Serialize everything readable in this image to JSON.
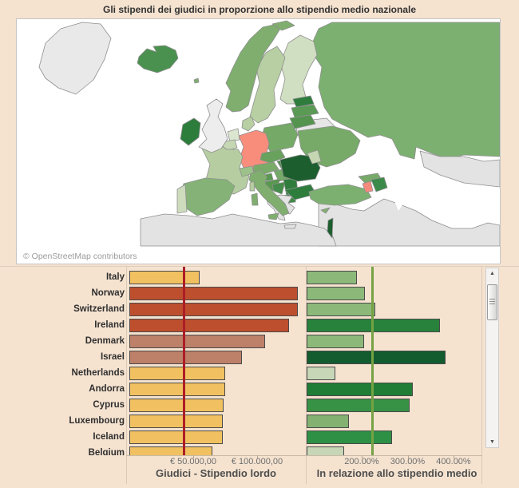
{
  "title": "Gli stipendi dei giudici in proporzione allo stipendio medio nazionale",
  "map": {
    "attribution": "© OpenStreetMap contributors",
    "country_colors": {
      "greenland": "#e9e9e9",
      "iceland": "#4a9150",
      "faroe": "#7fae6e",
      "norway": "#7fae6e",
      "sweden": "#b7cfa2",
      "finland": "#d0dfc1",
      "estonia": "#2e7d3d",
      "latvia": "#5a9a54",
      "lithuania": "#54944e",
      "belarus": "#e6e6e6",
      "russia": "#7cb070",
      "svalbard": "#7fae6e",
      "uk": "#ededed",
      "ireland": "#2c7c3b",
      "denmark": "#b7cfa2",
      "germany": "#f98d7c",
      "netherlands": "#dce5d0",
      "belgium": "#c6d7b4",
      "france": "#b6cda1",
      "switzerland": "#9cc289",
      "austria": "#79ab68",
      "czechia": "#68a25d",
      "poland": "#74a967",
      "slovakia": "#4c9350",
      "hungary": "#74a967",
      "slovenia": "#58984f",
      "croatia": "#58984f",
      "bosnia": "#438c49",
      "serbia": "#2e7d3d",
      "albania": "#3f8a46",
      "macedonia": "#3f8a46",
      "romania": "#1d5e2f",
      "moldova": "#c5d7b2",
      "bulgaria": "#2e7d3d",
      "greece": "#e3e3e3",
      "ukraine": "#77aa68",
      "spain": "#85b377",
      "portugal": "#cddcbd",
      "italy": "#7fae6e",
      "sicily": "#7fae6e",
      "sardinia": "#7fae6e",
      "corsica": "#b6cda1",
      "turkey": "#7cb070",
      "georgia": "#77aa68",
      "armenia": "#f58a7c",
      "azerbaijan": "#3b8a4a",
      "cyprus": "#7fae6e",
      "israel": "#1d5e2f",
      "north_africa": "#e3e3e3",
      "middle_east": "#e3e3e3",
      "kazakhstan": "#e3e3e3"
    }
  },
  "chart_data": [
    {
      "type": "bar",
      "orientation": "horizontal",
      "grid": false,
      "legend": "none",
      "categories": [
        "Italy",
        "Norway",
        "Switzerland",
        "Ireland",
        "Denmark",
        "Israel",
        "Netherlands",
        "Andorra",
        "Cyprus",
        "Luxembourg",
        "Iceland",
        "Belgium"
      ],
      "series": [
        {
          "name": "Giudici - Stipendio lordo",
          "unit": "EUR",
          "values": [
            55000,
            132000,
            132000,
            125000,
            106000,
            88000,
            75000,
            75000,
            74000,
            73000,
            73000,
            65000
          ],
          "bar_colors": [
            "#f1c161",
            "#bd4f2e",
            "#bd4f2e",
            "#bd4f2e",
            "#bd8068",
            "#bd8068",
            "#f1c161",
            "#f1c161",
            "#f1c161",
            "#f1c161",
            "#f1c161",
            "#f1c161"
          ],
          "axis_ticks": [
            {
              "value": 50000,
              "label": "€ 50.000,00"
            },
            {
              "value": 100000,
              "label": "€ 100.000,00"
            }
          ],
          "reference_line": {
            "value": 43000,
            "color": "#ae1c27"
          }
        },
        {
          "name": "In relazione allo stipendio medio",
          "unit": "%",
          "values": [
            190,
            207,
            230,
            370,
            205,
            383,
            143,
            311,
            304,
            172,
            266,
            162
          ],
          "bar_colors": [
            "#8cb97a",
            "#8cb97a",
            "#8cb97a",
            "#28823c",
            "#8cb97a",
            "#135c30",
            "#c6d6b7",
            "#1f7d35",
            "#389245",
            "#83b172",
            "#2e9045",
            "#c6d6b7"
          ],
          "axis_ticks": [
            {
              "value": 200,
              "label": "200.00%"
            },
            {
              "value": 300,
              "label": "300.00%"
            },
            {
              "value": 400,
              "label": "400.00%"
            }
          ],
          "reference_line": {
            "value": 224,
            "color": "#76a244"
          }
        }
      ]
    },
    {
      "type": "heatmap",
      "subtype": "choropleth-europe",
      "note": "Map of Europe shaded by judges' salary relative to national average salary: dark green = high ratio, pale green = low, salmon (Germany, Armenia) = below reference, gray = no data",
      "color_key": "map.country_colors"
    }
  ]
}
